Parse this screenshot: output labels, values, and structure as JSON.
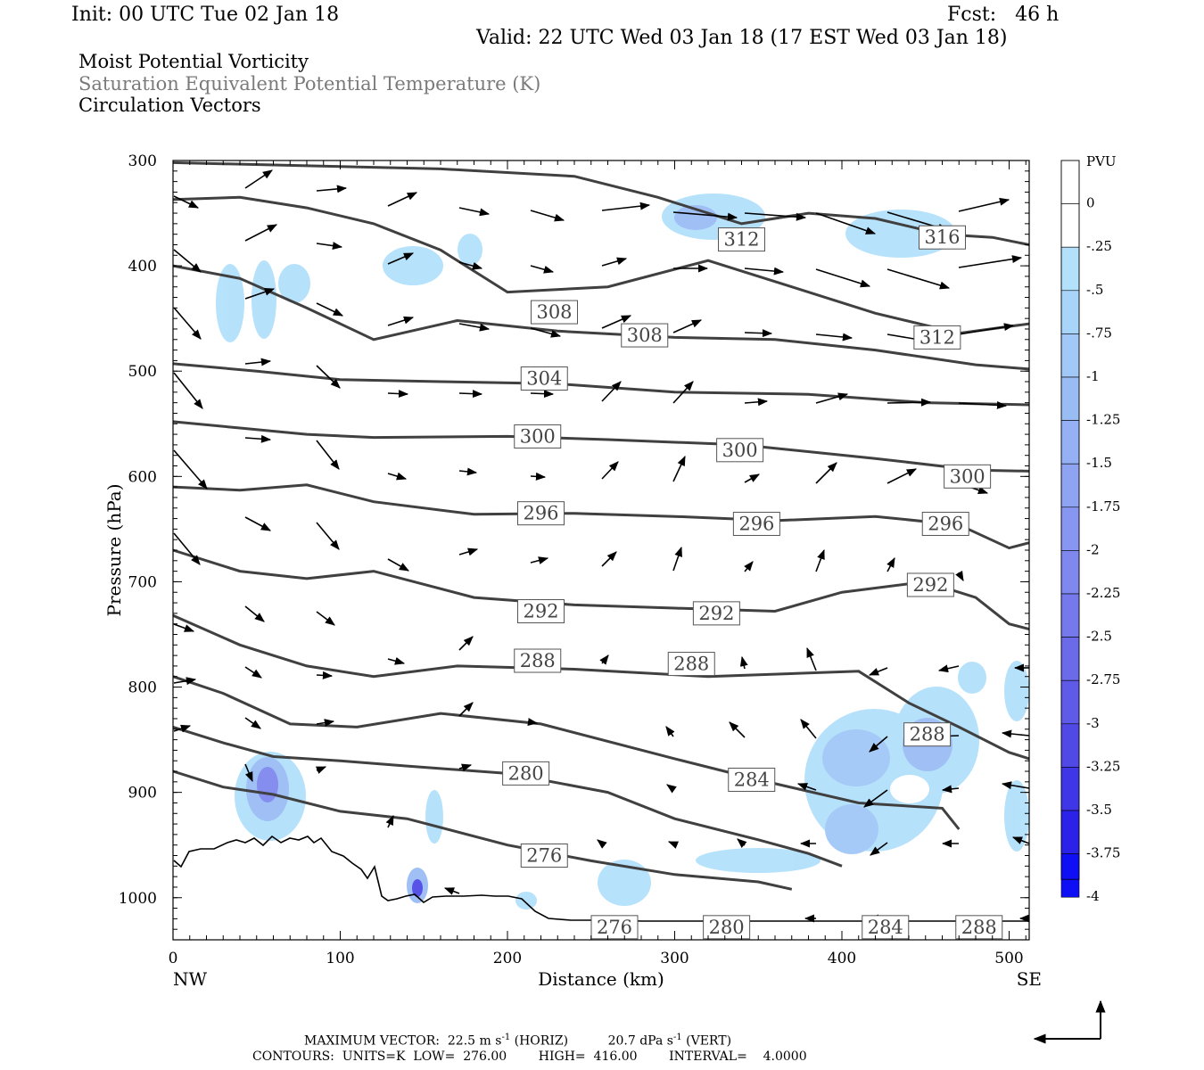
{
  "header": {
    "init": "Init: 00 UTC Tue 02 Jan 18",
    "fcst": "Fcst:   46 h",
    "valid": "Valid: 22 UTC Wed 03 Jan 18 (17 EST Wed 03 Jan 18)",
    "field1": "Moist Potential Vorticity",
    "field2": "Saturation Equivalent Potential Temperature (K)",
    "field3": "Circulation Vectors"
  },
  "footer": {
    "max_vector_label": "MAXIMUM VECTOR:",
    "horiz_value": "22.5",
    "horiz_unit": "m s",
    "horiz_tag": "(HORIZ)",
    "vert_value": "20.7",
    "vert_unit": "dPa s",
    "vert_tag": "(VERT)",
    "exponent": "-1",
    "contours_line": "CONTOURS:  UNITS=K  LOW=  276.00        HIGH=  416.00        INTERVAL=    4.0000"
  },
  "colors": {
    "contour": "#404040",
    "terrain": "#000000",
    "vector": "#000000"
  },
  "chart_data": {
    "type": "cross-section",
    "xlabel": "Distance (km)",
    "ylabel": "Pressure (hPa)",
    "xlim": [
      0,
      512
    ],
    "ylim": [
      1040,
      300
    ],
    "x_ticks": [
      0,
      100,
      200,
      300,
      400,
      500
    ],
    "y_ticks": [
      300,
      400,
      500,
      600,
      700,
      800,
      900,
      1000
    ],
    "left_end_label": "NW",
    "right_end_label": "SE",
    "colorbar": {
      "unit": "PVU",
      "labels": [
        "0",
        "-.25",
        "-.5",
        "-.75",
        "-1",
        "-1.25",
        "-1.5",
        "-1.75",
        "-2",
        "-2.25",
        "-2.5",
        "-2.75",
        "-3",
        "-3.25",
        "-3.5",
        "-3.75",
        "-4"
      ],
      "colors": [
        "#ffffff",
        "#ffffff",
        "#b3e0fb",
        "#a8d4fa",
        "#a2c8f7",
        "#9abcf5",
        "#95b0f4",
        "#8ea3f2",
        "#8796f0",
        "#7f88ee",
        "#7579ec",
        "#6b6ae9",
        "#5f5ae7",
        "#5149e6",
        "#3f37e7",
        "#2b22ea",
        "#0f0ff5"
      ]
    },
    "theta_es_contours": [
      {
        "label": "276",
        "label_x": 222,
        "label_p": 960,
        "points": [
          [
            0,
            880
          ],
          [
            30,
            895
          ],
          [
            60,
            902
          ],
          [
            100,
            918
          ],
          [
            140,
            925
          ],
          [
            200,
            950
          ],
          [
            250,
            965
          ],
          [
            300,
            978
          ],
          [
            350,
            985
          ],
          [
            370,
            992
          ]
        ]
      },
      {
        "label": "280",
        "label_x": 211,
        "label_p": 882,
        "points": [
          [
            0,
            838
          ],
          [
            30,
            853
          ],
          [
            60,
            866
          ],
          [
            100,
            870
          ],
          [
            140,
            875
          ],
          [
            200,
            882
          ],
          [
            260,
            900
          ],
          [
            300,
            925
          ],
          [
            350,
            945
          ],
          [
            380,
            958
          ],
          [
            400,
            970
          ]
        ]
      },
      {
        "label": "284",
        "label_x": 346,
        "label_p": 888,
        "points": [
          [
            0,
            790
          ],
          [
            30,
            806
          ],
          [
            70,
            835
          ],
          [
            110,
            838
          ],
          [
            160,
            825
          ],
          [
            220,
            835
          ],
          [
            300,
            868
          ],
          [
            350,
            888
          ],
          [
            410,
            910
          ],
          [
            460,
            915
          ],
          [
            470,
            935
          ]
        ]
      },
      {
        "label": "288",
        "label_x": 218,
        "label_p": 775,
        "points": [
          [
            0,
            732
          ],
          [
            40,
            760
          ],
          [
            80,
            780
          ],
          [
            120,
            790
          ],
          [
            170,
            780
          ],
          [
            240,
            783
          ],
          [
            320,
            790
          ],
          [
            410,
            785
          ],
          [
            440,
            815
          ],
          [
            470,
            838
          ],
          [
            500,
            862
          ],
          [
            512,
            868
          ]
        ]
      },
      {
        "label": "292",
        "label_x": 220,
        "label_p": 728,
        "points": [
          [
            0,
            670
          ],
          [
            40,
            690
          ],
          [
            80,
            697
          ],
          [
            120,
            690
          ],
          [
            180,
            715
          ],
          [
            240,
            722
          ],
          [
            300,
            725
          ],
          [
            360,
            728
          ],
          [
            400,
            710
          ],
          [
            450,
            700
          ],
          [
            480,
            715
          ],
          [
            500,
            740
          ],
          [
            512,
            745
          ]
        ]
      },
      {
        "label": "296",
        "label_x": 220,
        "label_p": 635,
        "points": [
          [
            0,
            610
          ],
          [
            40,
            613
          ],
          [
            80,
            608
          ],
          [
            120,
            624
          ],
          [
            180,
            636
          ],
          [
            240,
            635
          ],
          [
            300,
            638
          ],
          [
            360,
            642
          ],
          [
            420,
            638
          ],
          [
            470,
            646
          ],
          [
            500,
            668
          ],
          [
            512,
            663
          ]
        ]
      },
      {
        "label": "300",
        "label_x": 218,
        "label_p": 562,
        "points": [
          [
            0,
            548
          ],
          [
            40,
            554
          ],
          [
            80,
            560
          ],
          [
            120,
            563
          ],
          [
            200,
            562
          ],
          [
            260,
            565
          ],
          [
            340,
            570
          ],
          [
            420,
            583
          ],
          [
            480,
            594
          ],
          [
            512,
            595
          ]
        ]
      },
      {
        "label": "304",
        "label_x": 222,
        "label_p": 507,
        "points": [
          [
            0,
            493
          ],
          [
            50,
            500
          ],
          [
            100,
            508
          ],
          [
            160,
            510
          ],
          [
            230,
            512
          ],
          [
            300,
            520
          ],
          [
            380,
            522
          ],
          [
            450,
            530
          ],
          [
            512,
            532
          ]
        ]
      },
      {
        "label": "308",
        "label_x": 228,
        "label_p": 444,
        "points": [
          [
            0,
            400
          ],
          [
            40,
            412
          ],
          [
            80,
            440
          ],
          [
            120,
            470
          ],
          [
            170,
            452
          ],
          [
            230,
            462
          ],
          [
            300,
            468
          ],
          [
            360,
            470
          ],
          [
            420,
            480
          ],
          [
            480,
            494
          ],
          [
            512,
            498
          ]
        ]
      },
      {
        "label": "312",
        "label_x": 340,
        "label_p": 375,
        "points": [
          [
            0,
            337
          ],
          [
            40,
            335
          ],
          [
            80,
            345
          ],
          [
            120,
            360
          ],
          [
            160,
            385
          ],
          [
            200,
            425
          ],
          [
            260,
            420
          ],
          [
            320,
            395
          ],
          [
            370,
            420
          ],
          [
            420,
            445
          ],
          [
            470,
            464
          ],
          [
            512,
            455
          ]
        ]
      },
      {
        "label": "316",
        "label_x": 460,
        "label_p": 373,
        "points": [
          [
            0,
            302
          ],
          [
            80,
            305
          ],
          [
            160,
            308
          ],
          [
            240,
            315
          ],
          [
            290,
            335
          ],
          [
            340,
            360
          ],
          [
            380,
            350
          ],
          [
            420,
            355
          ],
          [
            460,
            370
          ],
          [
            490,
            373
          ],
          [
            512,
            380
          ]
        ]
      },
      {
        "label": "308",
        "label_x": 282,
        "label_p": 466,
        "points": []
      },
      {
        "label": "300",
        "label_x": 339,
        "label_p": 575,
        "points": []
      },
      {
        "label": "300",
        "label_x": 475,
        "label_p": 600,
        "points": []
      },
      {
        "label": "296",
        "label_x": 349,
        "label_p": 645,
        "points": []
      },
      {
        "label": "296",
        "label_x": 462,
        "label_p": 645,
        "points": []
      },
      {
        "label": "292",
        "label_x": 325,
        "label_p": 730,
        "points": []
      },
      {
        "label": "292",
        "label_x": 453,
        "label_p": 703,
        "points": []
      },
      {
        "label": "288",
        "label_x": 310,
        "label_p": 778,
        "points": []
      },
      {
        "label": "288",
        "label_x": 451,
        "label_p": 845,
        "points": []
      },
      {
        "label": "312",
        "label_x": 457,
        "label_p": 468,
        "points": []
      },
      {
        "label": "276",
        "label_x": 264,
        "label_p": 1028,
        "points": []
      },
      {
        "label": "280",
        "label_x": 331,
        "label_p": 1028,
        "points": []
      },
      {
        "label": "284",
        "label_x": 426,
        "label_p": 1028,
        "points": []
      },
      {
        "label": "288",
        "label_x": 482,
        "label_p": 1028,
        "points": []
      }
    ]
  }
}
